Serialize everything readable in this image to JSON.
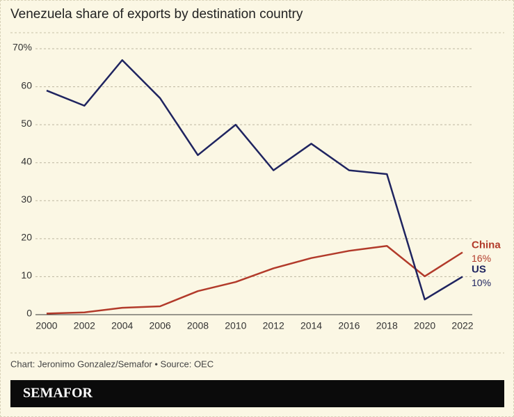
{
  "chart_data": {
    "type": "line",
    "title": "Venezuela share of exports by destination country",
    "x": [
      2000,
      2002,
      2004,
      2006,
      2008,
      2010,
      2012,
      2014,
      2016,
      2018,
      2020,
      2022
    ],
    "xlim": [
      2000,
      2022
    ],
    "xticks": [
      2000,
      2002,
      2004,
      2006,
      2008,
      2010,
      2012,
      2014,
      2016,
      2018,
      2020,
      2022
    ],
    "ylim": [
      0,
      70
    ],
    "yticks": [
      0,
      10,
      20,
      30,
      40,
      50,
      60,
      {
        "value": 70,
        "label": "70%"
      }
    ],
    "grid": true,
    "series": [
      {
        "name": "China",
        "color": "#b23a2a",
        "values": [
          0.3,
          0.6,
          1.8,
          2.2,
          6.2,
          8.6,
          12.2,
          14.9,
          16.8,
          18.1,
          10.1,
          16.4
        ],
        "value_labels": [
          null,
          null,
          null,
          null,
          null,
          null,
          null,
          null,
          null,
          null,
          null,
          "16%"
        ]
      },
      {
        "name": "US",
        "color": "#1f2460",
        "values": [
          59,
          55,
          67,
          57,
          42,
          50,
          38,
          45,
          38,
          37,
          4,
          10
        ],
        "value_labels": [
          null,
          null,
          null,
          null,
          null,
          null,
          null,
          null,
          null,
          null,
          null,
          "10%"
        ]
      }
    ],
    "source": "Chart: Jeronimo Gonzalez/Semafor • Source: OEC",
    "brand": "SEMAFOR"
  }
}
